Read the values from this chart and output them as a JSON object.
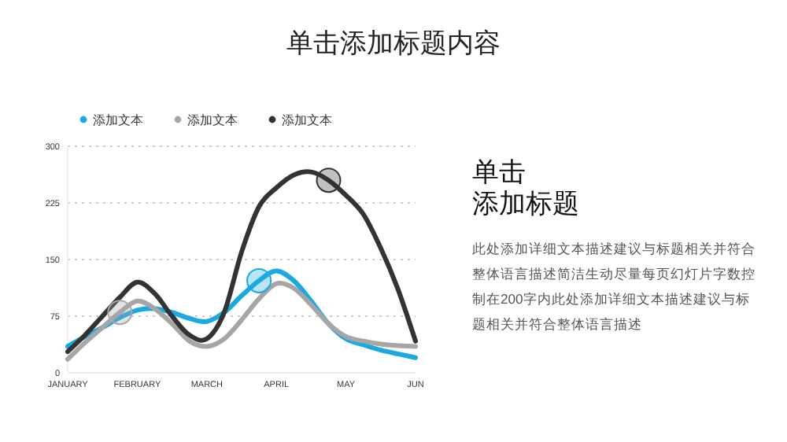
{
  "chart_data": {
    "type": "line",
    "title": "单击添加标题内容",
    "annotations": [
      "单击",
      "添加标题",
      "此处添加详细文本描述建议与标题相关并符合整体语言描述简洁生动尽量每页幻灯片字数控制在200字内此处添加详细文本描述建议与标题相关并符合整体语言描述"
    ],
    "categories": [
      "JANUARY",
      null,
      null,
      null,
      "FEBRUARY",
      null,
      null,
      null,
      "MARCH",
      null,
      null,
      null,
      "APRIL",
      null,
      null,
      null,
      "MAY",
      null,
      null,
      null,
      "JUN"
    ],
    "ylim": [
      0,
      300
    ],
    "yticks": [
      0,
      75,
      150,
      225,
      300
    ],
    "grid": "y",
    "legend": "top left",
    "marker": "none",
    "series": [
      {
        "name": "添加文本",
        "color": "#1aa9e0",
        "values": [
          35,
          48,
          60,
          73,
          83,
          85,
          80,
          72,
          68,
          80,
          102,
          122,
          135,
          122,
          95,
          65,
          45,
          37,
          30,
          25,
          20
        ]
      },
      {
        "name": "添加文本",
        "color": "#a6a6a6",
        "values": [
          18,
          40,
          60,
          80,
          95,
          85,
          65,
          42,
          35,
          45,
          70,
          98,
          118,
          112,
          90,
          65,
          48,
          42,
          38,
          36,
          35
        ]
      },
      {
        "name": "添加文本",
        "color": "#333333",
        "values": [
          28,
          50,
          75,
          100,
          120,
          105,
          75,
          50,
          45,
          80,
          160,
          220,
          245,
          262,
          266,
          255,
          235,
          210,
          165,
          110,
          42
        ]
      },
      {
        "type": "scatter",
        "marker": "circle",
        "color": "#1aa9e0",
        "values": [
          null,
          null,
          null,
          null,
          null,
          null,
          null,
          null,
          null,
          null,
          null,
          122,
          null,
          null,
          null,
          null,
          null,
          null,
          null,
          null,
          null
        ]
      },
      {
        "type": "scatter",
        "marker": "circle",
        "color": "#a6a6a6",
        "values": [
          null,
          null,
          null,
          80,
          null,
          null,
          null,
          null,
          null,
          null,
          null,
          null,
          null,
          null,
          null,
          null,
          null,
          null,
          null,
          null,
          null
        ]
      },
      {
        "type": "scatter",
        "marker": "circle",
        "color": "#333333",
        "values": [
          null,
          null,
          null,
          null,
          null,
          null,
          null,
          null,
          null,
          null,
          null,
          null,
          null,
          null,
          null,
          255,
          null,
          null,
          null,
          null,
          null
        ]
      }
    ]
  }
}
